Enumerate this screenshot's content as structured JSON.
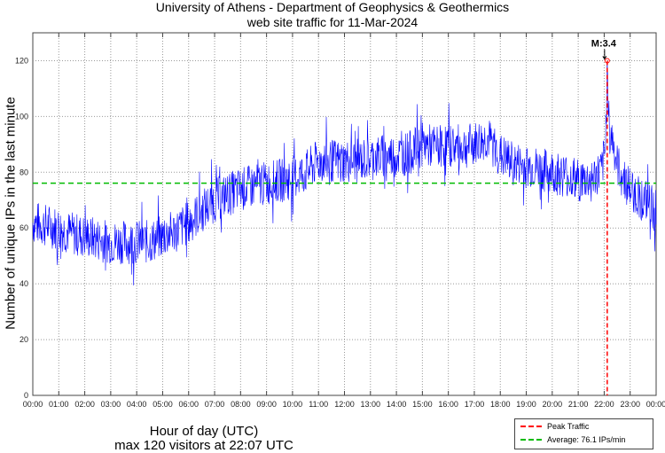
{
  "chart_data": {
    "type": "line",
    "title": "University of Athens - Department of Geophysics & Geothermics",
    "subtitle": "web site traffic for 11-Mar-2024",
    "xlabel": "Hour of day (UTC)",
    "xlabel2": "max 120 visitors at 22:07 UTC",
    "ylabel": "Number of unique IPs in the last minute",
    "xlim": [
      0,
      24
    ],
    "ylim": [
      0,
      130
    ],
    "grid": true,
    "x_ticks": [
      "00:00",
      "01:00",
      "02:00",
      "03:00",
      "04:00",
      "05:00",
      "06:00",
      "07:00",
      "08:00",
      "09:00",
      "10:00",
      "11:00",
      "12:00",
      "13:00",
      "14:00",
      "15:00",
      "16:00",
      "17:00",
      "18:00",
      "19:00",
      "20:00",
      "21:00",
      "22:00",
      "23:00",
      "00:00"
    ],
    "y_ticks": [
      0,
      20,
      40,
      60,
      80,
      100,
      120
    ],
    "series": [
      {
        "name": "Traffic",
        "color": "#0000ff",
        "x": [
          0,
          0.5,
          1,
          1.5,
          2,
          2.5,
          3,
          3.5,
          4,
          4.5,
          5,
          5.5,
          6,
          6.5,
          7,
          7.5,
          8,
          8.5,
          9,
          9.5,
          10,
          10.5,
          11,
          11.5,
          12,
          12.5,
          13,
          13.5,
          14,
          14.5,
          15,
          15.5,
          16,
          16.5,
          17,
          17.5,
          18,
          18.5,
          19,
          19.5,
          20,
          20.5,
          21,
          21.5,
          21.9,
          22.05,
          22.117,
          22.2,
          22.35,
          22.5,
          23,
          23.5,
          24
        ],
        "y": [
          62,
          61,
          60,
          58,
          57,
          56,
          55,
          55,
          55,
          55,
          57,
          59,
          62,
          66,
          70,
          72,
          74,
          75,
          76,
          77,
          78,
          80,
          84,
          84,
          84,
          84,
          85,
          86,
          86,
          87,
          90,
          89,
          90,
          89,
          90,
          92,
          86,
          83,
          82,
          81,
          80,
          79,
          77,
          77,
          80,
          88,
          120,
          95,
          90,
          82,
          74,
          70,
          66
        ]
      }
    ],
    "peak": {
      "x": 22.117,
      "y": 120,
      "label": "M:3.4",
      "color": "#ff0000"
    },
    "average": {
      "y": 76.1,
      "color": "#00bb00"
    },
    "legend": {
      "placement": "bottom-right",
      "entries": [
        "Peak Traffic",
        "Average: 76.1 IPs/min"
      ]
    }
  }
}
